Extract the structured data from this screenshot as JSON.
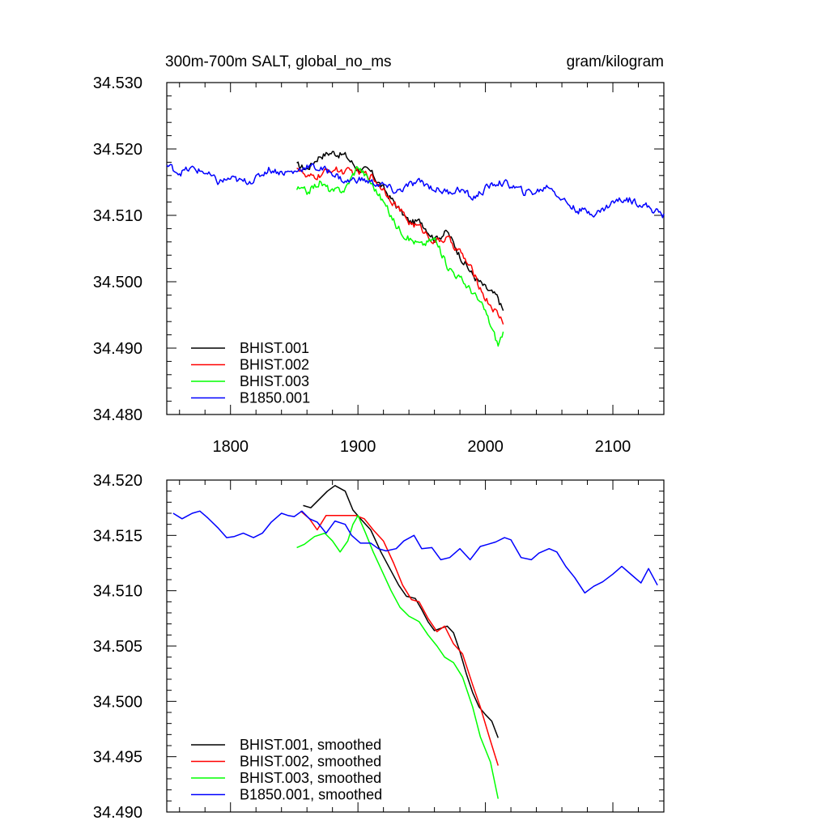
{
  "chart_data": [
    {
      "type": "line",
      "title_left": "300m-700m SALT, global_no_ms",
      "title_right": "gram/kilogram",
      "xlim": [
        1750,
        2140
      ],
      "ylim": [
        34.48,
        34.53
      ],
      "xticks": [
        1800,
        1900,
        2000,
        2100
      ],
      "xtick_labels": [
        "1800",
        "1900",
        "2000",
        "2100"
      ],
      "yticks": [
        34.48,
        34.49,
        34.5,
        34.51,
        34.52,
        34.53
      ],
      "ytick_labels": [
        "34.480",
        "34.490",
        "34.500",
        "34.510",
        "34.520",
        "34.530"
      ],
      "show_xtick_labels": true,
      "legend": "bottom-left",
      "noise": 0.0009,
      "series": [
        {
          "name": "BHIST.001",
          "color": "#000000",
          "x": [
            1852,
            1860,
            1870,
            1880,
            1890,
            1900,
            1910,
            1920,
            1930,
            1940,
            1950,
            1960,
            1970,
            1980,
            1990,
            2000,
            2010,
            2014
          ],
          "y": [
            34.5175,
            34.517,
            34.519,
            34.5195,
            34.519,
            34.517,
            34.5165,
            34.514,
            34.5115,
            34.509,
            34.509,
            34.5065,
            34.5075,
            34.504,
            34.501,
            34.499,
            34.4975,
            34.4955
          ]
        },
        {
          "name": "BHIST.002",
          "color": "#ff0000",
          "x": [
            1852,
            1860,
            1870,
            1880,
            1890,
            1900,
            1910,
            1920,
            1930,
            1940,
            1950,
            1960,
            1970,
            1980,
            1990,
            2000,
            2010,
            2014
          ],
          "y": [
            34.5175,
            34.5155,
            34.516,
            34.517,
            34.5165,
            34.5165,
            34.516,
            34.514,
            34.5115,
            34.509,
            34.508,
            34.506,
            34.5065,
            34.5045,
            34.5015,
            34.4975,
            34.495,
            34.494
          ]
        },
        {
          "name": "BHIST.003",
          "color": "#00ff00",
          "x": [
            1852,
            1860,
            1870,
            1880,
            1890,
            1900,
            1910,
            1920,
            1930,
            1940,
            1950,
            1960,
            1970,
            1980,
            1990,
            2000,
            2010,
            2014
          ],
          "y": [
            34.514,
            34.5135,
            34.515,
            34.5135,
            34.514,
            34.5175,
            34.515,
            34.512,
            34.5085,
            34.5065,
            34.5055,
            34.5065,
            34.5025,
            34.5005,
            34.4985,
            34.4955,
            34.4905,
            34.4925
          ]
        },
        {
          "name": "B1850.001",
          "color": "#0000ff",
          "x": [
            1750,
            1760,
            1770,
            1780,
            1790,
            1800,
            1810,
            1820,
            1830,
            1840,
            1850,
            1860,
            1870,
            1880,
            1890,
            1900,
            1910,
            1920,
            1930,
            1940,
            1950,
            1960,
            1970,
            1980,
            1990,
            2000,
            2010,
            2020,
            2030,
            2040,
            2050,
            2060,
            2070,
            2080,
            2090,
            2100,
            2110,
            2120,
            2130,
            2140
          ],
          "y": [
            34.5175,
            34.5165,
            34.517,
            34.5165,
            34.515,
            34.5155,
            34.515,
            34.5155,
            34.517,
            34.5165,
            34.5165,
            34.5175,
            34.517,
            34.5165,
            34.515,
            34.5155,
            34.515,
            34.5145,
            34.5135,
            34.5145,
            34.515,
            34.514,
            34.5135,
            34.514,
            34.5125,
            34.514,
            34.515,
            34.5145,
            34.5135,
            34.5135,
            34.5145,
            34.5125,
            34.511,
            34.5105,
            34.5105,
            34.512,
            34.5125,
            34.512,
            34.511,
            34.51
          ]
        }
      ]
    },
    {
      "type": "line",
      "xlim": [
        1750,
        2140
      ],
      "ylim": [
        34.49,
        34.52
      ],
      "xticks": [
        1800,
        1900,
        2000,
        2100
      ],
      "xtick_labels": [
        "",
        "",
        "",
        ""
      ],
      "yticks": [
        34.49,
        34.495,
        34.5,
        34.505,
        34.51,
        34.515,
        34.52
      ],
      "ytick_labels": [
        "34.490",
        "34.495",
        "34.500",
        "34.505",
        "34.510",
        "34.515",
        "34.520"
      ],
      "show_xtick_labels": false,
      "legend": "bottom-left",
      "noise": 0,
      "series": [
        {
          "name": "BHIST.001, smoothed",
          "color": "#000000",
          "x": [
            1857,
            1863,
            1870,
            1876,
            1882,
            1890,
            1896,
            1902,
            1910,
            1918,
            1925,
            1932,
            1938,
            1945,
            1950,
            1955,
            1960,
            1965,
            1970,
            1975,
            1980,
            1985,
            1990,
            1995,
            2000,
            2005,
            2010
          ],
          "y": [
            34.5177,
            34.5175,
            34.5183,
            34.519,
            34.5195,
            34.519,
            34.5173,
            34.5165,
            34.5155,
            34.5135,
            34.512,
            34.5105,
            34.5095,
            34.5093,
            34.5083,
            34.5072,
            34.5064,
            34.5066,
            34.5068,
            34.5062,
            34.5045,
            34.5025,
            34.5008,
            34.4995,
            34.4988,
            34.4982,
            34.4967
          ]
        },
        {
          "name": "BHIST.002, smoothed",
          "color": "#ff0000",
          "x": [
            1855,
            1862,
            1868,
            1875,
            1882,
            1890,
            1898,
            1905,
            1912,
            1920,
            1928,
            1935,
            1942,
            1948,
            1955,
            1962,
            1968,
            1975,
            1982,
            1990,
            1996,
            2003,
            2010
          ],
          "y": [
            34.5172,
            34.5165,
            34.5155,
            34.5168,
            34.5168,
            34.5168,
            34.5168,
            34.5165,
            34.5155,
            34.5145,
            34.5125,
            34.5105,
            34.5092,
            34.509,
            34.5075,
            34.5063,
            34.5068,
            34.5052,
            34.5043,
            34.5015,
            34.4995,
            34.4968,
            34.4942
          ]
        },
        {
          "name": "BHIST.003, smoothed",
          "color": "#00ff00",
          "x": [
            1852,
            1858,
            1866,
            1874,
            1880,
            1886,
            1892,
            1896,
            1900,
            1906,
            1912,
            1918,
            1926,
            1933,
            1940,
            1948,
            1955,
            1962,
            1968,
            1975,
            1982,
            1990,
            1996,
            2004,
            2010
          ],
          "y": [
            34.5139,
            34.5142,
            34.5149,
            34.5152,
            34.5145,
            34.5135,
            34.5145,
            34.516,
            34.5168,
            34.5152,
            34.5135,
            34.512,
            34.51,
            34.5085,
            34.5077,
            34.5072,
            34.506,
            34.505,
            34.504,
            34.5035,
            34.5022,
            34.4995,
            34.4968,
            34.4945,
            34.4912
          ]
        },
        {
          "name": "B1850.001, smoothed",
          "color": "#0000ff",
          "x": [
            1755,
            1762,
            1770,
            1776,
            1782,
            1790,
            1797,
            1803,
            1810,
            1818,
            1825,
            1832,
            1840,
            1845,
            1850,
            1856,
            1862,
            1868,
            1875,
            1882,
            1890,
            1895,
            1902,
            1910,
            1916,
            1922,
            1930,
            1936,
            1944,
            1950,
            1958,
            1965,
            1972,
            1980,
            1988,
            1996,
            2002,
            2008,
            2015,
            2020,
            2028,
            2036,
            2042,
            2050,
            2056,
            2063,
            2070,
            2078,
            2085,
            2092,
            2100,
            2107,
            2115,
            2122,
            2128,
            2135
          ],
          "y": [
            34.517,
            34.5165,
            34.517,
            34.5172,
            34.5166,
            34.5157,
            34.5148,
            34.5149,
            34.5152,
            34.5148,
            34.5152,
            34.5162,
            34.517,
            34.5168,
            34.5167,
            34.5172,
            34.5165,
            34.5162,
            34.5152,
            34.5163,
            34.516,
            34.515,
            34.5143,
            34.5143,
            34.5138,
            34.5136,
            34.5138,
            34.5145,
            34.515,
            34.5138,
            34.5139,
            34.5128,
            34.513,
            34.5138,
            34.5128,
            34.514,
            34.5142,
            34.5144,
            34.5148,
            34.5146,
            34.513,
            34.5128,
            34.5134,
            34.5138,
            34.5135,
            34.5122,
            34.5112,
            34.5098,
            34.5104,
            34.5108,
            34.5115,
            34.5122,
            34.5114,
            34.5107,
            34.512,
            34.5105
          ]
        }
      ]
    }
  ]
}
